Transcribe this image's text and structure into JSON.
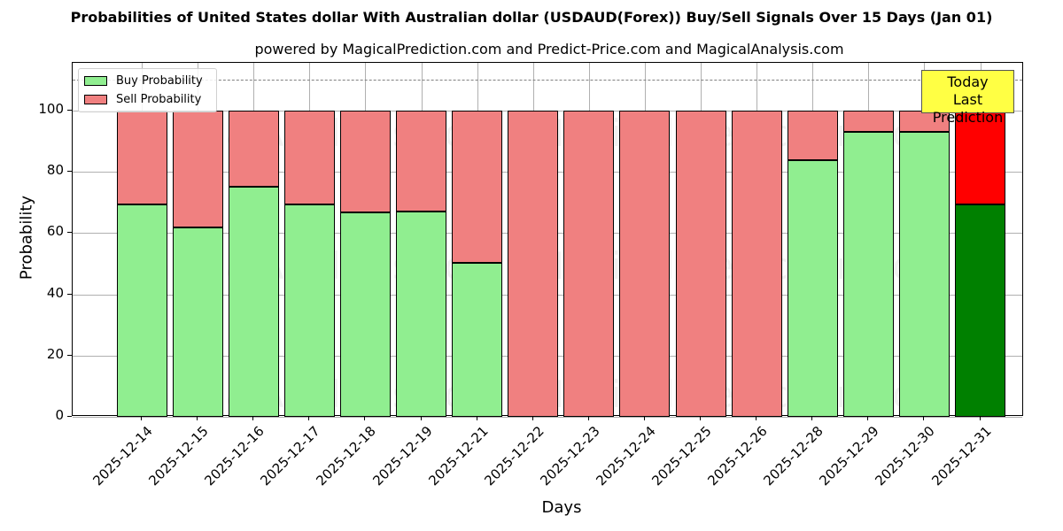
{
  "title": "Probabilities of United States dollar With Australian dollar (USDAUD(Forex)) Buy/Sell Signals Over 15 Days (Jan 01)",
  "subtitle": "powered by MagicalPrediction.com and Predict-Price.com and MagicalAnalysis.com",
  "legend": {
    "buy": "Buy Probability",
    "sell": "Sell Probability"
  },
  "annotation": {
    "line1": "Today",
    "line2": "Last Prediction"
  },
  "watermarks": [
    "MagicalAnalysis.com",
    "MagicalPrediction.com"
  ],
  "colors": {
    "buy": "#90ee90",
    "sell": "#f08080",
    "today_buy": "#008000",
    "today_sell": "#ff0000",
    "annotation_bg": "#ffff44"
  },
  "chart_data": {
    "type": "bar",
    "stacked": true,
    "title": "Probabilities of United States dollar With Australian dollar (USDAUD(Forex)) Buy/Sell Signals Over 15 Days (Jan 01)",
    "subtitle": "powered by MagicalPrediction.com and Predict-Price.com and MagicalAnalysis.com",
    "xlabel": "Days",
    "ylabel": "Probability",
    "ylim": [
      0,
      115
    ],
    "yticks": [
      0,
      20,
      40,
      60,
      80,
      100
    ],
    "grid": true,
    "legend_position": "upper left",
    "reference_line": {
      "y": 110,
      "style": "dashed"
    },
    "categories": [
      "2025-12-14",
      "2025-12-15",
      "2025-12-16",
      "2025-12-17",
      "2025-12-18",
      "2025-12-19",
      "2025-12-21",
      "2025-12-22",
      "2025-12-23",
      "2025-12-24",
      "2025-12-25",
      "2025-12-26",
      "2025-12-28",
      "2025-12-29",
      "2025-12-30",
      "2025-12-31"
    ],
    "series": [
      {
        "name": "Buy Probability",
        "values": [
          69.4,
          61.8,
          75.1,
          69.4,
          66.8,
          67.0,
          50.3,
          0,
          0,
          0,
          0,
          0,
          83.8,
          93.1,
          93.1,
          69.4
        ]
      },
      {
        "name": "Sell Probability",
        "values": [
          30.6,
          38.2,
          24.9,
          30.6,
          33.2,
          33.0,
          49.7,
          100,
          100,
          100,
          100,
          100,
          16.2,
          6.9,
          6.9,
          30.6
        ]
      }
    ],
    "annotations": [
      {
        "text": "Today\nLast Prediction",
        "x": "2025-12-31"
      }
    ]
  }
}
